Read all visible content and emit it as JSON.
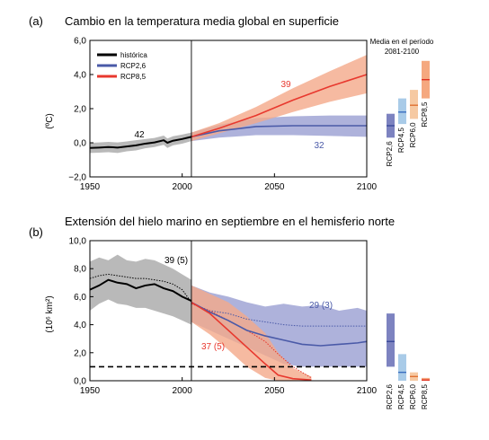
{
  "chart_data": [
    {
      "type": "line",
      "panel_label": "(a)",
      "title": "Cambio en la temperatura media global en superficie",
      "ylabel": "(ºC)",
      "xlim": [
        1950,
        2100
      ],
      "ylim": [
        -2,
        6
      ],
      "xticks": [
        "1950",
        "2000",
        "2050",
        "2100"
      ],
      "yticks": [
        "−2,0",
        "0,0",
        "2,0",
        "4,0",
        "6,0"
      ],
      "grid": false,
      "legend_position": "top-left",
      "reference_year": 2005,
      "colors": {
        "historica": "#000000",
        "rcp26": "#4a5aa8",
        "rcp85": "#e8382e",
        "band_hist": "#a8a8a8",
        "band_26": "#9a9fd2",
        "band_85": "#f4a98a"
      },
      "series": [
        {
          "name": "histórica",
          "x": [
            1950,
            1955,
            1960,
            1965,
            1970,
            1975,
            1980,
            1985,
            1990,
            1992,
            1995,
            2000,
            2005
          ],
          "y": [
            -0.3,
            -0.28,
            -0.25,
            -0.28,
            -0.22,
            -0.15,
            -0.05,
            0.02,
            0.15,
            0.0,
            0.12,
            0.22,
            0.35
          ],
          "band_low": [
            -0.6,
            -0.58,
            -0.55,
            -0.6,
            -0.5,
            -0.45,
            -0.32,
            -0.25,
            -0.12,
            -0.3,
            -0.15,
            -0.05,
            0.1
          ],
          "band_high": [
            0.0,
            0.02,
            0.05,
            0.02,
            0.08,
            0.15,
            0.22,
            0.28,
            0.42,
            0.25,
            0.38,
            0.48,
            0.6
          ],
          "model_count": "42"
        },
        {
          "name": "RCP2,6",
          "x": [
            2005,
            2020,
            2040,
            2060,
            2080,
            2100
          ],
          "y": [
            0.35,
            0.7,
            0.95,
            1.0,
            1.0,
            1.0
          ],
          "band_low": [
            0.1,
            0.3,
            0.45,
            0.45,
            0.4,
            0.35
          ],
          "band_high": [
            0.6,
            1.05,
            1.45,
            1.55,
            1.6,
            1.6
          ],
          "model_count": "32"
        },
        {
          "name": "RCP8,5",
          "x": [
            2005,
            2020,
            2040,
            2060,
            2080,
            2100
          ],
          "y": [
            0.35,
            0.85,
            1.6,
            2.5,
            3.3,
            4.0
          ],
          "band_low": [
            0.1,
            0.55,
            1.15,
            1.8,
            2.4,
            2.9
          ],
          "band_high": [
            0.6,
            1.15,
            2.1,
            3.2,
            4.2,
            5.15
          ],
          "model_count": "39"
        }
      ],
      "side_panel": {
        "title": "Media en el período",
        "period": "2081-2100",
        "bars": [
          {
            "name": "RCP2,6",
            "mean": 1.0,
            "low": 0.3,
            "high": 1.7,
            "color": "#7d83c0",
            "line_color": "#3a4a9a"
          },
          {
            "name": "RCP4,5",
            "mean": 1.8,
            "low": 1.1,
            "high": 2.6,
            "color": "#a9cbe8",
            "line_color": "#3a6ec0"
          },
          {
            "name": "RCP6,0",
            "mean": 2.2,
            "low": 1.4,
            "high": 3.1,
            "color": "#f6c9a2",
            "line_color": "#e07030"
          },
          {
            "name": "RCP8,5",
            "mean": 3.7,
            "low": 2.6,
            "high": 4.8,
            "color": "#f5a87f",
            "line_color": "#e03020"
          }
        ]
      }
    },
    {
      "type": "line",
      "panel_label": "(b)",
      "title": "Extensión del hielo marino en septiembre en el hemisferio norte",
      "ylabel": "(10⁶ km²)",
      "xlim": [
        1950,
        2100
      ],
      "ylim": [
        0,
        10
      ],
      "xticks": [
        "1950",
        "2000",
        "2050",
        "2100"
      ],
      "yticks": [
        "0,0",
        "2,0",
        "4,0",
        "6,0",
        "8,0",
        "10,0"
      ],
      "grid": false,
      "reference_year": 2005,
      "threshold": 1.0,
      "colors": {
        "historica": "#000000",
        "rcp26": "#4a5aa8",
        "rcp85": "#e8382e",
        "band_hist": "#a8a8a8",
        "band_26": "#9a9fd2",
        "band_85": "#f4a98a"
      },
      "series": [
        {
          "name": "histórica",
          "x": [
            1950,
            1955,
            1960,
            1965,
            1970,
            1975,
            1980,
            1985,
            1990,
            1995,
            2000,
            2005
          ],
          "y": [
            6.5,
            6.8,
            7.2,
            7.0,
            6.9,
            6.6,
            6.8,
            6.9,
            6.6,
            6.4,
            6.0,
            5.7
          ],
          "subset_y": [
            7.3,
            7.5,
            7.6,
            7.5,
            7.4,
            7.3,
            7.3,
            7.2,
            7.1,
            6.9,
            6.5,
            5.6
          ],
          "band_low": [
            5.0,
            5.5,
            5.8,
            5.5,
            5.4,
            5.2,
            5.2,
            5.0,
            4.8,
            4.6,
            4.3,
            4.0
          ],
          "band_high": [
            8.5,
            8.8,
            8.6,
            9.0,
            8.6,
            8.5,
            8.7,
            8.6,
            8.3,
            8.0,
            7.6,
            7.2
          ],
          "model_count": "39 (5)"
        },
        {
          "name": "RCP2,6",
          "x": [
            2005,
            2015,
            2025,
            2035,
            2045,
            2055,
            2065,
            2075,
            2085,
            2095,
            2100
          ],
          "y": [
            5.6,
            4.9,
            4.3,
            3.6,
            3.2,
            2.9,
            2.6,
            2.5,
            2.6,
            2.7,
            2.8
          ],
          "subset_y": [
            5.5,
            5.0,
            4.8,
            4.4,
            4.2,
            4.0,
            3.9,
            3.9,
            3.9,
            3.9,
            3.9
          ],
          "band_low": [
            4.2,
            3.6,
            3.0,
            2.4,
            1.8,
            1.2,
            1.0,
            1.0,
            1.0,
            1.0,
            1.0
          ],
          "band_high": [
            6.8,
            6.3,
            6.0,
            5.6,
            5.3,
            5.5,
            5.3,
            5.4,
            5.0,
            5.2,
            5.0
          ],
          "model_count": "29 (3)"
        },
        {
          "name": "RCP8,5",
          "x": [
            2005,
            2015,
            2025,
            2035,
            2045,
            2052,
            2060,
            2070
          ],
          "y": [
            5.6,
            4.8,
            3.6,
            2.4,
            1.2,
            0.4,
            0.15,
            0.05
          ],
          "subset_y": [
            5.5,
            5.0,
            4.3,
            3.6,
            2.8,
            1.9,
            1.0,
            0.2
          ],
          "band_low": [
            4.2,
            3.3,
            2.2,
            1.0,
            0.2,
            0.0,
            0.0,
            0.0
          ],
          "band_high": [
            6.8,
            6.2,
            5.6,
            4.6,
            3.4,
            2.0,
            0.9,
            0.3
          ],
          "model_count": "37 (5)"
        }
      ],
      "side_panel": {
        "bars": [
          {
            "name": "RCP2,6",
            "mean": 2.8,
            "low": 1.0,
            "high": 4.8,
            "color": "#7d83c0",
            "line_color": "#3a4a9a"
          },
          {
            "name": "RCP4,5",
            "mean": 0.6,
            "low": 0.0,
            "high": 1.9,
            "color": "#a9cbe8",
            "line_color": "#3a6ec0"
          },
          {
            "name": "RCP6,0",
            "mean": 0.3,
            "low": 0.0,
            "high": 0.6,
            "color": "#f6c9a2",
            "line_color": "#e07030"
          },
          {
            "name": "RCP8,5",
            "mean": 0.05,
            "low": 0.0,
            "high": 0.2,
            "color": "#f5a87f",
            "line_color": "#e03020"
          }
        ]
      }
    }
  ]
}
